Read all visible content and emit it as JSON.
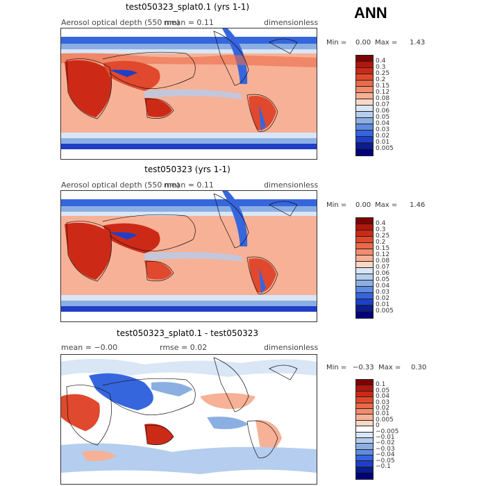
{
  "header": {
    "season": "ANN"
  },
  "panels": [
    {
      "title": "test050323_splat0.1 (yrs 1-1)",
      "variable": "Aerosol optical depth (550 nm)",
      "stat": "mean =      0.11",
      "units": "dimensionless",
      "min_label": "Min =",
      "min_value": "0.00",
      "max_label": "Max =",
      "max_value": "1.43",
      "scale": [
        "0.4",
        "0.3",
        "0.25",
        "0.2",
        "0.15",
        "0.12",
        "0.08",
        "0.07",
        "0.06",
        "0.05",
        "0.04",
        "0.03",
        "0.02",
        "0.01",
        "0.005"
      ]
    },
    {
      "title": "test050323 (yrs 1-1)",
      "variable": "Aerosol optical depth (550 nm)",
      "stat": "mean =      0.11",
      "units": "dimensionless",
      "min_label": "Min =",
      "min_value": "0.00",
      "max_label": "Max =",
      "max_value": "1.46",
      "scale": [
        "0.4",
        "0.3",
        "0.25",
        "0.2",
        "0.15",
        "0.12",
        "0.08",
        "0.07",
        "0.06",
        "0.05",
        "0.04",
        "0.03",
        "0.02",
        "0.01",
        "0.005"
      ]
    },
    {
      "title": "test050323_splat0.1 - test050323",
      "variable": "mean =   −0.00",
      "stat": "rmse =    0.02",
      "units": "dimensionless",
      "min_label": "Min =",
      "min_value": "−0.33",
      "max_label": "Max =",
      "max_value": "0.30",
      "scale": [
        "0.1",
        "0.05",
        "0.04",
        "0.03",
        "0.02",
        "0.01",
        "0.005",
        "0",
        "−0.005",
        "−0.01",
        "−0.02",
        "−0.03",
        "−0.04",
        "−0.05",
        "−0.1"
      ]
    }
  ],
  "colors": {
    "abs_scale": [
      "#7f0000",
      "#b2160c",
      "#cc2a17",
      "#e0492d",
      "#ea6a4a",
      "#f28c6c",
      "#f7b196",
      "#fbd8c6",
      "#d8e6f6",
      "#b5cdee",
      "#8cafe3",
      "#5f8be0",
      "#3666de",
      "#1f3fc8",
      "#0b1d8f",
      "#00007a"
    ],
    "diff_scale": [
      "#7f0000",
      "#b2160c",
      "#cc2a17",
      "#e0492d",
      "#ea6a4a",
      "#f28c6c",
      "#f7b196",
      "#fbd8c6",
      "#ffffff",
      "#d8e6f6",
      "#b5cdee",
      "#8cafe3",
      "#5f8be0",
      "#3666de",
      "#1f3fc8",
      "#0b1d8f",
      "#00007a"
    ]
  }
}
